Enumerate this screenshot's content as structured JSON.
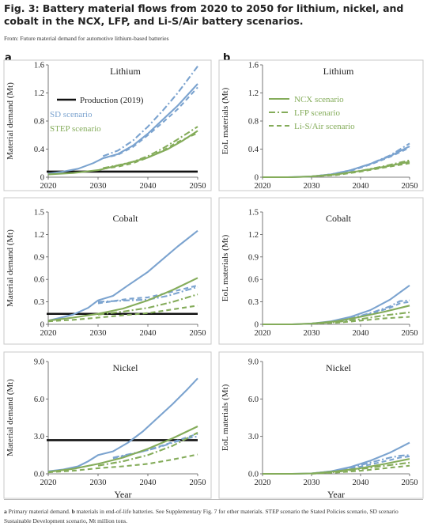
{
  "header": {
    "title": "Fig. 3: Battery material flows from 2020 to 2050 for lithium, nickel, and cobalt in the NCX, LFP, and Li-S/Air battery scenarios.",
    "source": "From: Future material demand for automotive lithium-based batteries"
  },
  "panel_letters": {
    "a": "a",
    "b": "b"
  },
  "caption": {
    "p1_bold": "a",
    "p1": " Primary material demand. ",
    "p2_bold": "b",
    "p2": " materials in end-of-life batteries. See Supplementary Fig. 7 for other materials. STEP scenario the Stated Policies scenario, SD scenario Sustainable Development scenario, Mt million tons."
  },
  "colors": {
    "sd": "#7ba3cf",
    "step": "#84ac5a",
    "production": "#111111",
    "border": "#c8c8c8"
  },
  "legends": {
    "left": {
      "production": "Production (2019)",
      "sd": "SD scenario",
      "step": "STEP scenario"
    },
    "right": {
      "ncx": "NCX scenario",
      "lfp": "LFP scenario",
      "lis": "Li-S/Air scenario"
    }
  },
  "chart_data": [
    {
      "type": "line",
      "panel": "a",
      "title": "Lithium",
      "xlabel": "",
      "ylabel": "Material demand (Mt)",
      "xlim": [
        2020,
        2050
      ],
      "ylim": [
        0,
        1.6
      ],
      "xticks": [
        2020,
        2030,
        2040,
        2050
      ],
      "yticks": [
        "0",
        "0.4",
        "0.8",
        "1.2",
        "1.6"
      ],
      "production": 0.08,
      "series": [
        {
          "name": "SD scenario - NCX scenario",
          "style": "solid",
          "color": "sd",
          "x": [
            2020,
            2023,
            2026,
            2029,
            2031,
            2034,
            2037,
            2040,
            2043,
            2046,
            2050
          ],
          "y": [
            0.05,
            0.08,
            0.12,
            0.2,
            0.27,
            0.33,
            0.45,
            0.62,
            0.82,
            1.02,
            1.33
          ]
        },
        {
          "name": "SD scenario - LFP scenario",
          "style": "dotdash",
          "color": "sd",
          "x": [
            2031,
            2034,
            2037,
            2040,
            2043,
            2046,
            2050
          ],
          "y": [
            0.3,
            0.38,
            0.52,
            0.72,
            0.95,
            1.2,
            1.58
          ]
        },
        {
          "name": "SD scenario - Li-S/Air scenario",
          "style": "dashed",
          "color": "sd",
          "x": [
            2031,
            2034,
            2037,
            2040,
            2043,
            2046,
            2050
          ],
          "y": [
            0.27,
            0.32,
            0.43,
            0.6,
            0.78,
            0.97,
            1.28
          ]
        },
        {
          "name": "STEP scenario - NCX scenario",
          "style": "solid",
          "color": "step",
          "x": [
            2020,
            2025,
            2030,
            2033,
            2036,
            2040,
            2044,
            2047,
            2050
          ],
          "y": [
            0.04,
            0.06,
            0.1,
            0.15,
            0.2,
            0.28,
            0.4,
            0.52,
            0.66
          ]
        },
        {
          "name": "STEP scenario - LFP scenario",
          "style": "dotdash",
          "color": "step",
          "x": [
            2031,
            2034,
            2037,
            2040,
            2043,
            2046,
            2050
          ],
          "y": [
            0.13,
            0.17,
            0.22,
            0.3,
            0.41,
            0.54,
            0.72
          ]
        },
        {
          "name": "STEP scenario - Li-S/Air scenario",
          "style": "dashed",
          "color": "step",
          "x": [
            2031,
            2034,
            2037,
            2040,
            2043,
            2046,
            2050
          ],
          "y": [
            0.12,
            0.15,
            0.2,
            0.28,
            0.38,
            0.5,
            0.63
          ]
        }
      ]
    },
    {
      "type": "line",
      "panel": "b",
      "title": "Lithium",
      "xlabel": "",
      "ylabel": "EoL materials (Mt)",
      "xlim": [
        2020,
        2050
      ],
      "ylim": [
        0,
        1.6
      ],
      "xticks": [
        2020,
        2030,
        2040,
        2050
      ],
      "yticks": [
        "0",
        "0.4",
        "0.8",
        "1.2",
        "1.6"
      ],
      "series": [
        {
          "name": "SD scenario - NCX scenario",
          "style": "solid",
          "color": "sd",
          "x": [
            2020,
            2025,
            2030,
            2034,
            2038,
            2042,
            2046,
            2050
          ],
          "y": [
            0,
            0,
            0.01,
            0.04,
            0.1,
            0.19,
            0.3,
            0.44
          ]
        },
        {
          "name": "SD scenario - LFP scenario",
          "style": "dotdash",
          "color": "sd",
          "x": [
            2030,
            2034,
            2038,
            2042,
            2046,
            2050
          ],
          "y": [
            0.01,
            0.04,
            0.1,
            0.19,
            0.31,
            0.48
          ]
        },
        {
          "name": "SD scenario - Li-S/Air scenario",
          "style": "dashed",
          "color": "sd",
          "x": [
            2030,
            2034,
            2038,
            2042,
            2046,
            2050
          ],
          "y": [
            0.01,
            0.04,
            0.09,
            0.18,
            0.29,
            0.42
          ]
        },
        {
          "name": "STEP scenario - NCX scenario",
          "style": "solid",
          "color": "step",
          "x": [
            2020,
            2026,
            2030,
            2035,
            2040,
            2045,
            2050
          ],
          "y": [
            0,
            0,
            0.01,
            0.04,
            0.09,
            0.15,
            0.22
          ]
        },
        {
          "name": "STEP scenario - LFP scenario",
          "style": "dotdash",
          "color": "step",
          "x": [
            2030,
            2035,
            2040,
            2045,
            2050
          ],
          "y": [
            0.01,
            0.04,
            0.09,
            0.16,
            0.24
          ]
        },
        {
          "name": "STEP scenario - Li-S/Air scenario",
          "style": "dashed",
          "color": "step",
          "x": [
            2030,
            2035,
            2040,
            2045,
            2050
          ],
          "y": [
            0.01,
            0.03,
            0.08,
            0.14,
            0.2
          ]
        }
      ]
    },
    {
      "type": "line",
      "panel": "a",
      "title": "Cobalt",
      "xlabel": "",
      "ylabel": "Material demand (Mt)",
      "xlim": [
        2020,
        2050
      ],
      "ylim": [
        0,
        1.5
      ],
      "xticks": [
        2020,
        2030,
        2040,
        2050
      ],
      "yticks": [
        "0",
        "0.3",
        "0.6",
        "0.9",
        "1.2",
        "1.5"
      ],
      "production": 0.14,
      "series": [
        {
          "name": "SD scenario - NCX scenario",
          "style": "solid",
          "color": "sd",
          "x": [
            2020,
            2022,
            2025,
            2028,
            2030,
            2033,
            2036,
            2040,
            2043,
            2046,
            2050
          ],
          "y": [
            0.05,
            0.08,
            0.13,
            0.22,
            0.32,
            0.38,
            0.52,
            0.7,
            0.87,
            1.04,
            1.25
          ]
        },
        {
          "name": "SD scenario - LFP scenario",
          "style": "dotdash",
          "color": "sd",
          "x": [
            2030,
            2033,
            2036,
            2040,
            2044,
            2047,
            2050
          ],
          "y": [
            0.3,
            0.31,
            0.32,
            0.33,
            0.38,
            0.44,
            0.5
          ]
        },
        {
          "name": "SD scenario - Li-S/Air scenario",
          "style": "dashed",
          "color": "sd",
          "x": [
            2030,
            2033,
            2036,
            2040,
            2044,
            2047,
            2050
          ],
          "y": [
            0.28,
            0.31,
            0.34,
            0.36,
            0.42,
            0.47,
            0.52
          ]
        },
        {
          "name": "STEP scenario - NCX scenario",
          "style": "solid",
          "color": "step",
          "x": [
            2020,
            2025,
            2030,
            2035,
            2040,
            2045,
            2050
          ],
          "y": [
            0.05,
            0.09,
            0.14,
            0.21,
            0.32,
            0.46,
            0.62
          ]
        },
        {
          "name": "STEP scenario - LFP scenario",
          "style": "dotdash",
          "color": "step",
          "x": [
            2030,
            2035,
            2040,
            2045,
            2050
          ],
          "y": [
            0.13,
            0.17,
            0.22,
            0.3,
            0.4
          ]
        },
        {
          "name": "STEP scenario - Li-S/Air scenario",
          "style": "dashed",
          "color": "step",
          "x": [
            2020,
            2025,
            2030,
            2035,
            2040,
            2045,
            2050
          ],
          "y": [
            0.04,
            0.06,
            0.09,
            0.12,
            0.15,
            0.2,
            0.25
          ]
        }
      ]
    },
    {
      "type": "line",
      "panel": "b",
      "title": "Cobalt",
      "xlabel": "",
      "ylabel": "EoL materials (Mt)",
      "xlim": [
        2020,
        2050
      ],
      "ylim": [
        0,
        1.5
      ],
      "xticks": [
        2020,
        2030,
        2040,
        2050
      ],
      "yticks": [
        "0",
        "0.3",
        "0.6",
        "0.9",
        "1.2",
        "1.5"
      ],
      "series": [
        {
          "name": "SD scenario - NCX scenario",
          "style": "solid",
          "color": "sd",
          "x": [
            2020,
            2026,
            2030,
            2034,
            2038,
            2042,
            2046,
            2050
          ],
          "y": [
            0,
            0,
            0.01,
            0.04,
            0.1,
            0.19,
            0.33,
            0.52
          ]
        },
        {
          "name": "SD scenario - LFP scenario",
          "style": "dotdash",
          "color": "sd",
          "x": [
            2030,
            2034,
            2038,
            2042,
            2046,
            2048,
            2050
          ],
          "y": [
            0.01,
            0.03,
            0.08,
            0.15,
            0.24,
            0.31,
            0.32
          ]
        },
        {
          "name": "SD scenario - Li-S/Air scenario",
          "style": "dashed",
          "color": "sd",
          "x": [
            2030,
            2034,
            2038,
            2042,
            2046,
            2048,
            2050
          ],
          "y": [
            0.01,
            0.03,
            0.07,
            0.14,
            0.22,
            0.28,
            0.3
          ]
        },
        {
          "name": "STEP scenario - NCX scenario",
          "style": "solid",
          "color": "step",
          "x": [
            2020,
            2026,
            2030,
            2035,
            2040,
            2045,
            2050
          ],
          "y": [
            0,
            0,
            0.01,
            0.04,
            0.1,
            0.17,
            0.25
          ]
        },
        {
          "name": "STEP scenario - LFP scenario",
          "style": "dotdash",
          "color": "step",
          "x": [
            2030,
            2035,
            2040,
            2045,
            2050
          ],
          "y": [
            0.01,
            0.03,
            0.07,
            0.12,
            0.16
          ]
        },
        {
          "name": "STEP scenario - Li-S/Air scenario",
          "style": "dashed",
          "color": "step",
          "x": [
            2030,
            2035,
            2040,
            2045,
            2050
          ],
          "y": [
            0.01,
            0.02,
            0.05,
            0.08,
            0.1
          ]
        }
      ]
    },
    {
      "type": "line",
      "panel": "a",
      "title": "Nickel",
      "xlabel": "Year",
      "ylabel": "Material demand (Mt)",
      "xlim": [
        2020,
        2050
      ],
      "ylim": [
        0,
        9.0
      ],
      "xticks": [
        2020,
        2030,
        2040,
        2050
      ],
      "yticks": [
        "0.0",
        "3.0",
        "6.0",
        "9.0"
      ],
      "production": 2.7,
      "series": [
        {
          "name": "SD scenario - NCX scenario",
          "style": "solid",
          "color": "sd",
          "x": [
            2020,
            2023,
            2026,
            2028,
            2030,
            2033,
            2036,
            2039,
            2042,
            2045,
            2048,
            2050
          ],
          "y": [
            0.2,
            0.35,
            0.6,
            1.0,
            1.5,
            1.8,
            2.5,
            3.4,
            4.5,
            5.6,
            6.8,
            7.65
          ]
        },
        {
          "name": "SD scenario - LFP scenario",
          "style": "dotdash",
          "color": "sd",
          "x": [
            2033,
            2036,
            2039,
            2042,
            2045,
            2048,
            2050
          ],
          "y": [
            1.3,
            1.55,
            1.8,
            2.1,
            2.5,
            2.85,
            3.0
          ]
        },
        {
          "name": "SD scenario - Li-S/Air scenario",
          "style": "dashed",
          "color": "sd",
          "x": [
            2033,
            2036,
            2039,
            2042,
            2045,
            2048,
            2050
          ],
          "y": [
            1.25,
            1.5,
            1.8,
            2.15,
            2.55,
            2.95,
            3.2
          ]
        },
        {
          "name": "STEP scenario - NCX scenario",
          "style": "solid",
          "color": "step",
          "x": [
            2020,
            2025,
            2030,
            2035,
            2040,
            2045,
            2050
          ],
          "y": [
            0.15,
            0.4,
            0.8,
            1.3,
            2.0,
            2.85,
            3.8
          ]
        },
        {
          "name": "STEP scenario - LFP scenario",
          "style": "dotdash",
          "color": "step",
          "x": [
            2030,
            2035,
            2040,
            2045,
            2050
          ],
          "y": [
            0.65,
            1.0,
            1.5,
            2.25,
            3.3
          ]
        },
        {
          "name": "STEP scenario - Li-S/Air scenario",
          "style": "dashed",
          "color": "step",
          "x": [
            2020,
            2025,
            2030,
            2035,
            2040,
            2045,
            2050
          ],
          "y": [
            0.12,
            0.25,
            0.45,
            0.6,
            0.8,
            1.15,
            1.55
          ]
        }
      ]
    },
    {
      "type": "line",
      "panel": "b",
      "title": "Nickel",
      "xlabel": "Year",
      "ylabel": "EoL materials (Mt)",
      "xlim": [
        2020,
        2050
      ],
      "ylim": [
        0,
        9.0
      ],
      "xticks": [
        2020,
        2030,
        2040,
        2050
      ],
      "yticks": [
        "0.0",
        "3.0",
        "6.0",
        "9.0"
      ],
      "series": [
        {
          "name": "SD scenario - NCX scenario",
          "style": "solid",
          "color": "sd",
          "x": [
            2020,
            2026,
            2030,
            2034,
            2038,
            2042,
            2046,
            2050
          ],
          "y": [
            0,
            0,
            0.03,
            0.2,
            0.55,
            1.05,
            1.7,
            2.5
          ]
        },
        {
          "name": "SD scenario - LFP scenario",
          "style": "dotdash",
          "color": "sd",
          "x": [
            2030,
            2034,
            2038,
            2042,
            2046,
            2048,
            2050
          ],
          "y": [
            0.03,
            0.2,
            0.5,
            0.9,
            1.3,
            1.45,
            1.5
          ]
        },
        {
          "name": "SD scenario - Li-S/Air scenario",
          "style": "dashed",
          "color": "sd",
          "x": [
            2030,
            2034,
            2038,
            2042,
            2046,
            2048,
            2050
          ],
          "y": [
            0.02,
            0.15,
            0.4,
            0.75,
            1.1,
            1.3,
            1.4
          ]
        },
        {
          "name": "STEP scenario - NCX scenario",
          "style": "solid",
          "color": "step",
          "x": [
            2020,
            2026,
            2030,
            2035,
            2040,
            2045,
            2050
          ],
          "y": [
            0,
            0,
            0.03,
            0.2,
            0.45,
            0.8,
            1.2
          ]
        },
        {
          "name": "STEP scenario - LFP scenario",
          "style": "dotdash",
          "color": "step",
          "x": [
            2030,
            2035,
            2040,
            2045,
            2050
          ],
          "y": [
            0.02,
            0.15,
            0.38,
            0.65,
            0.9
          ]
        },
        {
          "name": "STEP scenario - Li-S/Air scenario",
          "style": "dashed",
          "color": "step",
          "x": [
            2030,
            2035,
            2040,
            2045,
            2050
          ],
          "y": [
            0.01,
            0.1,
            0.25,
            0.45,
            0.65
          ]
        }
      ]
    }
  ]
}
